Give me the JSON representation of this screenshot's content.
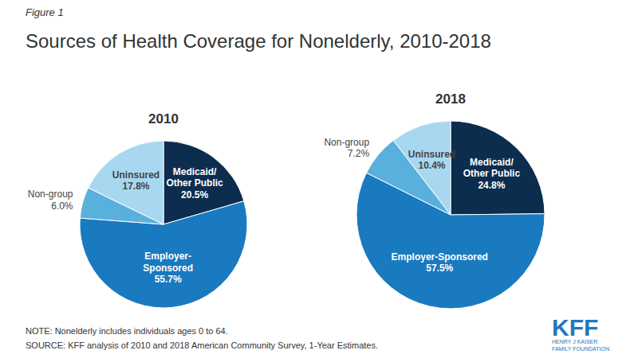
{
  "title": "Sources of Health Coverage for Nonelderly, 2010-2018",
  "annotations": [
    "Figure 1",
    "NOTE:  Nonelderly includes individuals ages 0 to 64.",
    "SOURCE:  KFF analysis of 2010 and 2018 American Community Survey, 1-Year Estimates.",
    "KFF",
    "HENRY J KAISER\nFAMILY FOUNDATION"
  ],
  "chart_data": [
    {
      "type": "pie",
      "title": "2010",
      "categories": [
        "Medicaid/\nOther Public",
        "Employer-\nSponsored",
        "Non-group",
        "Uninsured"
      ],
      "values": [
        20.5,
        55.7,
        6.0,
        17.8
      ],
      "value_labels": [
        "20.5%",
        "55.7%",
        "6.0%",
        "17.8%"
      ],
      "colors": [
        "#0d2d4e",
        "#1a7abf",
        "#5ab0dc",
        "#a8d8f0"
      ],
      "data_labels": true
    },
    {
      "type": "pie",
      "title": "2018",
      "categories": [
        "Medicaid/\nOther Public",
        "Employer-Sponsored",
        "Non-group",
        "Uninsured"
      ],
      "values": [
        24.8,
        57.5,
        7.2,
        10.4
      ],
      "value_labels": [
        "24.8%",
        "57.5%",
        "7.2%",
        "10.4%"
      ],
      "colors": [
        "#0d2d4e",
        "#1a7abf",
        "#5ab0dc",
        "#a8d8f0"
      ],
      "data_labels": true
    }
  ]
}
